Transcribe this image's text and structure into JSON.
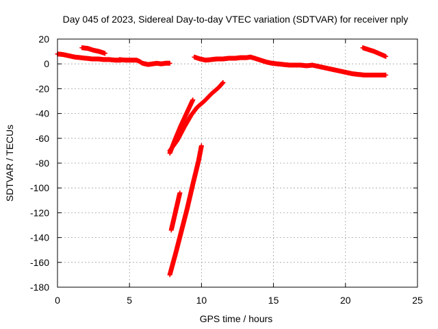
{
  "chart_data": {
    "type": "scatter",
    "title": "Day 045 of 2023, Sidereal Day-to-day VTEC variation (SDTVAR) for receiver nply",
    "xlabel": "GPS time / hours",
    "ylabel": "SDTVAR / TECUs",
    "xlim": [
      0,
      25
    ],
    "ylim": [
      -180,
      20
    ],
    "xticks": [
      0,
      5,
      10,
      15,
      20,
      25
    ],
    "yticks": [
      20,
      0,
      -20,
      -40,
      -60,
      -80,
      -100,
      -120,
      -140,
      -160,
      -180
    ],
    "grid": true,
    "marker": "plus",
    "color": "#ff0000",
    "series": [
      {
        "values": [
          [
            0.0,
            8
          ],
          [
            0.4,
            7.5
          ],
          [
            0.8,
            6.5
          ],
          [
            1.2,
            5.5
          ],
          [
            1.6,
            5
          ],
          [
            2.0,
            4.5
          ],
          [
            2.4,
            4
          ],
          [
            2.8,
            4
          ],
          [
            3.2,
            3.5
          ],
          [
            3.6,
            3.5
          ],
          [
            4.0,
            3
          ],
          [
            4.4,
            3
          ]
        ]
      },
      {
        "values": [
          [
            1.7,
            13
          ],
          [
            2.1,
            12.5
          ],
          [
            2.5,
            11
          ],
          [
            2.9,
            10
          ],
          [
            3.3,
            8.5
          ]
        ]
      },
      {
        "values": [
          [
            4.3,
            3.5
          ],
          [
            4.7,
            3
          ],
          [
            5.1,
            3
          ],
          [
            5.5,
            3
          ],
          [
            5.7,
            2
          ],
          [
            5.9,
            0.5
          ],
          [
            6.1,
            0
          ],
          [
            6.3,
            -0.5
          ],
          [
            6.6,
            0
          ],
          [
            6.9,
            0.5
          ],
          [
            7.2,
            0
          ],
          [
            7.5,
            0.5
          ],
          [
            7.8,
            0.5
          ]
        ]
      },
      {
        "values": [
          [
            7.8,
            -70
          ],
          [
            8.3,
            -62
          ],
          [
            8.8,
            -51
          ],
          [
            9.3,
            -41
          ],
          [
            9.7,
            -35
          ],
          [
            10.2,
            -30
          ],
          [
            10.7,
            -24
          ],
          [
            11.2,
            -19
          ],
          [
            11.5,
            -15
          ]
        ]
      },
      {
        "values": [
          [
            7.8,
            -72
          ],
          [
            8.2,
            -60
          ],
          [
            8.6,
            -49
          ],
          [
            9.0,
            -39
          ],
          [
            9.4,
            -29
          ]
        ]
      },
      {
        "values": [
          [
            7.9,
            -134
          ],
          [
            8.1,
            -124
          ],
          [
            8.3,
            -114
          ],
          [
            8.5,
            -104
          ]
        ]
      },
      {
        "values": [
          [
            7.8,
            -170
          ],
          [
            8.2,
            -153
          ],
          [
            8.6,
            -135
          ],
          [
            9.0,
            -117
          ],
          [
            9.4,
            -97
          ],
          [
            9.8,
            -78
          ],
          [
            10.0,
            -66
          ]
        ]
      },
      {
        "values": [
          [
            9.5,
            5.5
          ],
          [
            9.9,
            4
          ],
          [
            10.3,
            3
          ],
          [
            10.7,
            3.5
          ],
          [
            11.1,
            4
          ],
          [
            11.5,
            4
          ],
          [
            11.9,
            4.5
          ],
          [
            12.3,
            4.5
          ],
          [
            12.7,
            5
          ],
          [
            13.1,
            5
          ],
          [
            13.4,
            5.5
          ],
          [
            13.7,
            4.5
          ],
          [
            14.1,
            3
          ],
          [
            14.5,
            1.5
          ],
          [
            14.9,
            0.5
          ],
          [
            15.3,
            0
          ],
          [
            15.7,
            -0.5
          ],
          [
            16.1,
            -1
          ],
          [
            16.5,
            -1
          ],
          [
            16.9,
            -1
          ],
          [
            17.3,
            -1.5
          ],
          [
            17.7,
            -1
          ],
          [
            18.1,
            -2
          ],
          [
            18.5,
            -3
          ],
          [
            18.9,
            -4
          ],
          [
            19.3,
            -5
          ],
          [
            19.7,
            -6
          ],
          [
            20.1,
            -7
          ],
          [
            20.5,
            -8
          ],
          [
            20.9,
            -8.5
          ],
          [
            21.3,
            -9
          ],
          [
            21.7,
            -9
          ],
          [
            22.1,
            -9
          ],
          [
            22.5,
            -9
          ],
          [
            22.8,
            -9
          ]
        ]
      },
      {
        "values": [
          [
            21.2,
            13
          ],
          [
            21.6,
            11.5
          ],
          [
            22.0,
            10
          ],
          [
            22.4,
            8
          ],
          [
            22.8,
            6
          ]
        ]
      }
    ]
  }
}
